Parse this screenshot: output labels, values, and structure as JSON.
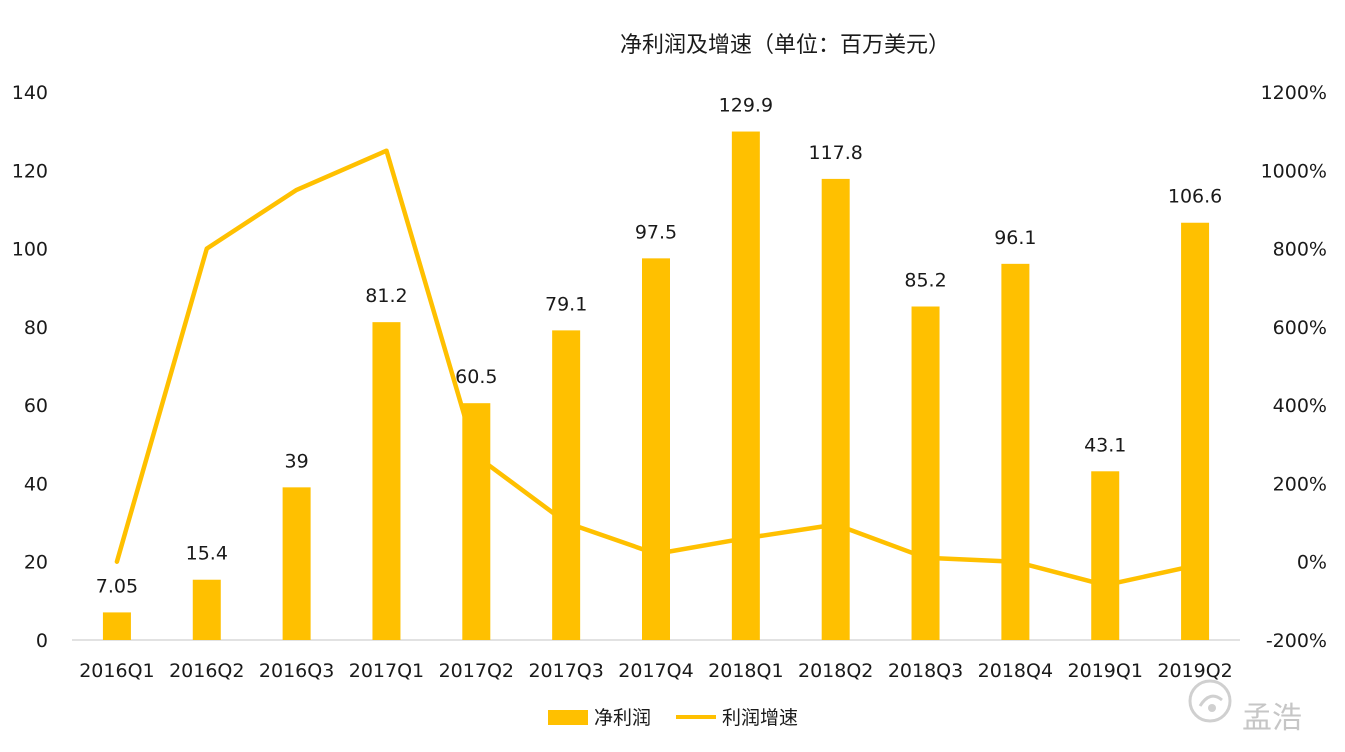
{
  "chart_data": {
    "type": "bar",
    "title": "净利润及增速（单位：百万美元）",
    "categories": [
      "2016Q1",
      "2016Q2",
      "2016Q3",
      "2017Q1",
      "2017Q2",
      "2017Q3",
      "2017Q4",
      "2018Q1",
      "2018Q2",
      "2018Q3",
      "2018Q4",
      "2019Q1",
      "2019Q2"
    ],
    "series": [
      {
        "name": "净利润",
        "kind": "bar",
        "axis": "left",
        "color": "#FFC000",
        "values": [
          7.05,
          15.4,
          39,
          81.2,
          60.5,
          79.1,
          97.5,
          129.9,
          117.8,
          85.2,
          96.1,
          43.1,
          106.6
        ],
        "labels": [
          "7.05",
          "15.4",
          "39",
          "81.2",
          "60.5",
          "79.1",
          "97.5",
          "129.9",
          "117.8",
          "85.2",
          "96.1",
          "43.1",
          "106.6"
        ]
      },
      {
        "name": "利润增速",
        "kind": "line",
        "axis": "right",
        "color": "#FFC000",
        "values": [
          0,
          800,
          950,
          1050,
          270,
          100,
          20,
          60,
          95,
          10,
          0,
          -60,
          -10
        ]
      }
    ],
    "y_left": {
      "min": 0,
      "max": 140,
      "ticks": [
        "0",
        "20",
        "40",
        "60",
        "80",
        "100",
        "120",
        "140"
      ]
    },
    "y_right": {
      "min": -200,
      "max": 1200,
      "ticks": [
        "-200%",
        "0%",
        "200%",
        "400%",
        "600%",
        "800%",
        "1000%",
        "1200%"
      ]
    },
    "legend": {
      "position": "bottom",
      "entries": [
        "净利润",
        "利润增速"
      ]
    },
    "grid": false
  },
  "watermark": {
    "text": "孟浩",
    "icon": "coin-logo-icon"
  }
}
